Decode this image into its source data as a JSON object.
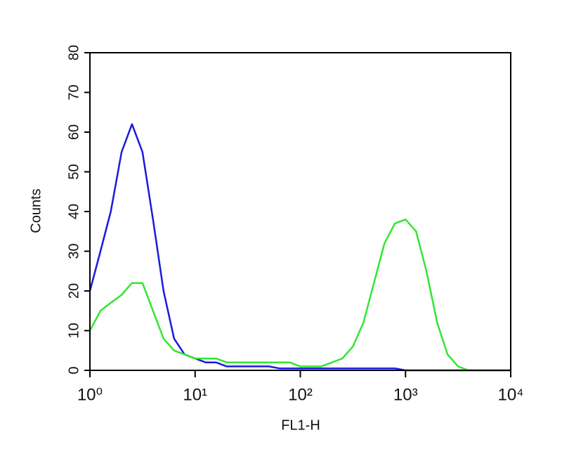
{
  "chart_data": {
    "type": "line",
    "x_label": "FL1-H",
    "y_label": "Counts",
    "xscale": "log",
    "xlim": [
      1,
      10000
    ],
    "xticks": [
      {
        "value": 1,
        "label": "10⁰"
      },
      {
        "value": 10,
        "label": "10¹"
      },
      {
        "value": 100,
        "label": "10²"
      },
      {
        "value": 1000,
        "label": "10³"
      },
      {
        "value": 10000,
        "label": "10⁴"
      }
    ],
    "ylim": [
      0,
      80
    ],
    "yticks": [
      0,
      10,
      20,
      30,
      40,
      50,
      60,
      70,
      80
    ],
    "x": [
      1,
      1.26,
      1.58,
      2,
      2.51,
      3.16,
      3.98,
      5.01,
      6.31,
      7.94,
      10,
      12.6,
      15.8,
      20,
      25.1,
      31.6,
      39.8,
      50.1,
      63.1,
      79.4,
      100,
      126,
      158,
      200,
      251,
      316,
      398,
      501,
      631,
      794,
      1000,
      1260,
      1580,
      2000,
      2510,
      3160,
      3980,
      5010,
      6310,
      7940,
      10000
    ],
    "series": [
      {
        "color": "#1a1adf",
        "values": [
          20,
          30,
          40,
          55,
          62,
          55,
          38,
          20,
          8,
          4,
          3,
          2,
          2,
          1,
          1,
          1,
          1,
          1,
          0.5,
          0.5,
          0.5,
          0.5,
          0.5,
          0.5,
          0.5,
          0.5,
          0.5,
          0.5,
          0.5,
          0.5,
          0,
          0,
          0,
          0,
          0,
          0,
          0,
          0,
          0,
          0,
          0
        ]
      },
      {
        "color": "#33e633",
        "values": [
          10,
          15,
          17,
          19,
          22,
          22,
          15,
          8,
          5,
          4,
          3,
          3,
          3,
          2,
          2,
          2,
          2,
          2,
          2,
          2,
          1,
          1,
          1,
          2,
          3,
          6,
          12,
          22,
          32,
          37,
          38,
          35,
          25,
          12,
          4,
          1,
          0,
          0,
          0,
          0,
          0
        ]
      }
    ]
  }
}
